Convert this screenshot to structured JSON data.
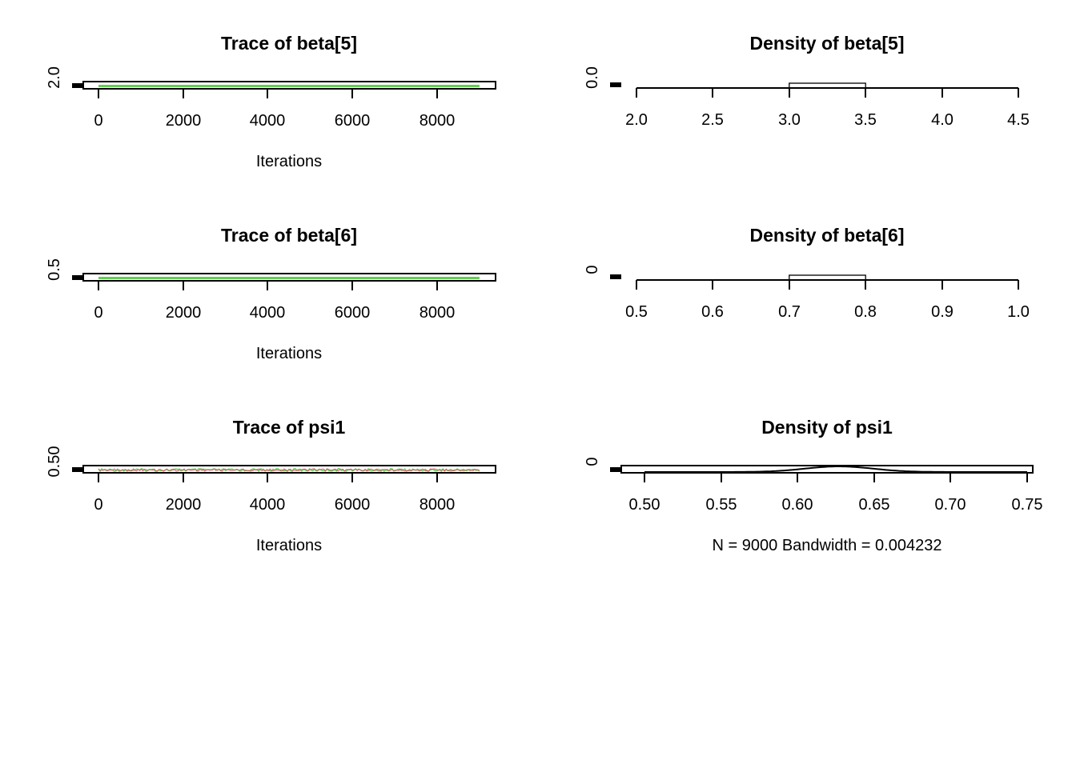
{
  "colors": {
    "axis": "#000000",
    "trace_main": "#61D04F",
    "trace_secondary": "#DF536B",
    "density_line": "#000000",
    "background": "#FFFFFF"
  },
  "chart_data": [
    {
      "type": "line",
      "panel": "trace",
      "title": "Trace of beta[5]",
      "xlabel": "Iterations",
      "ylabel": "",
      "x_ticks": [
        "0",
        "2000",
        "4000",
        "6000",
        "8000"
      ],
      "y_ticks": [
        "2.0"
      ],
      "xlim": [
        -500,
        9400
      ],
      "ylim": [
        1.99,
        2.01
      ],
      "series": [
        {
          "x": [
            0,
            9000
          ],
          "values": [
            2.0,
            2.0
          ],
          "color": "#61D04F"
        }
      ],
      "grid": false
    },
    {
      "type": "bar",
      "panel": "density",
      "title": "Density of beta[5]",
      "xlabel": "",
      "ylabel": "",
      "x_ticks": [
        "2.0",
        "2.5",
        "3.0",
        "3.5",
        "4.0",
        "4.5"
      ],
      "y_ticks": [
        "0.0"
      ],
      "xlim": [
        2.0,
        4.5
      ],
      "bins": [
        {
          "from": 3.0,
          "to": 3.5
        }
      ],
      "grid": false
    },
    {
      "type": "line",
      "panel": "trace",
      "title": "Trace of beta[6]",
      "xlabel": "Iterations",
      "ylabel": "",
      "x_ticks": [
        "0",
        "2000",
        "4000",
        "6000",
        "8000"
      ],
      "y_ticks": [
        "0.5"
      ],
      "xlim": [
        -500,
        9400
      ],
      "ylim": [
        0.49,
        0.51
      ],
      "series": [
        {
          "x": [
            0,
            9000
          ],
          "values": [
            0.5,
            0.5
          ],
          "color": "#61D04F"
        }
      ],
      "grid": false
    },
    {
      "type": "bar",
      "panel": "density",
      "title": "Density of beta[6]",
      "xlabel": "",
      "ylabel": "",
      "x_ticks": [
        "0.5",
        "0.6",
        "0.7",
        "0.8",
        "0.9",
        "1.0"
      ],
      "y_ticks": [
        "0"
      ],
      "xlim": [
        0.5,
        1.0
      ],
      "bins": [
        {
          "from": 0.7,
          "to": 0.8
        }
      ],
      "grid": false
    },
    {
      "type": "line",
      "panel": "trace",
      "title": "Trace of psi1",
      "xlabel": "Iterations",
      "ylabel": "",
      "x_ticks": [
        "0",
        "2000",
        "4000",
        "6000",
        "8000"
      ],
      "y_ticks": [
        "0.50"
      ],
      "xlim": [
        -500,
        9400
      ],
      "ylim": [
        0.49,
        0.77
      ],
      "series": [
        {
          "x": [
            0,
            9000
          ],
          "values": [
            0.5,
            0.5
          ],
          "color": "#61D04F",
          "noisy": true
        },
        {
          "x": [
            0,
            9000
          ],
          "values": [
            0.5,
            0.5
          ],
          "color": "#DF536B",
          "noisy": true
        }
      ],
      "grid": false
    },
    {
      "type": "line",
      "panel": "density",
      "title": "Density of psi1",
      "xlabel": "N = 9000   Bandwidth = 0.004232",
      "ylabel": "",
      "x_ticks": [
        "0.50",
        "0.55",
        "0.60",
        "0.65",
        "0.70",
        "0.75"
      ],
      "y_ticks": [
        "0"
      ],
      "xlim": [
        0.5,
        0.75
      ],
      "density_peak": 0.627,
      "grid": false
    }
  ]
}
